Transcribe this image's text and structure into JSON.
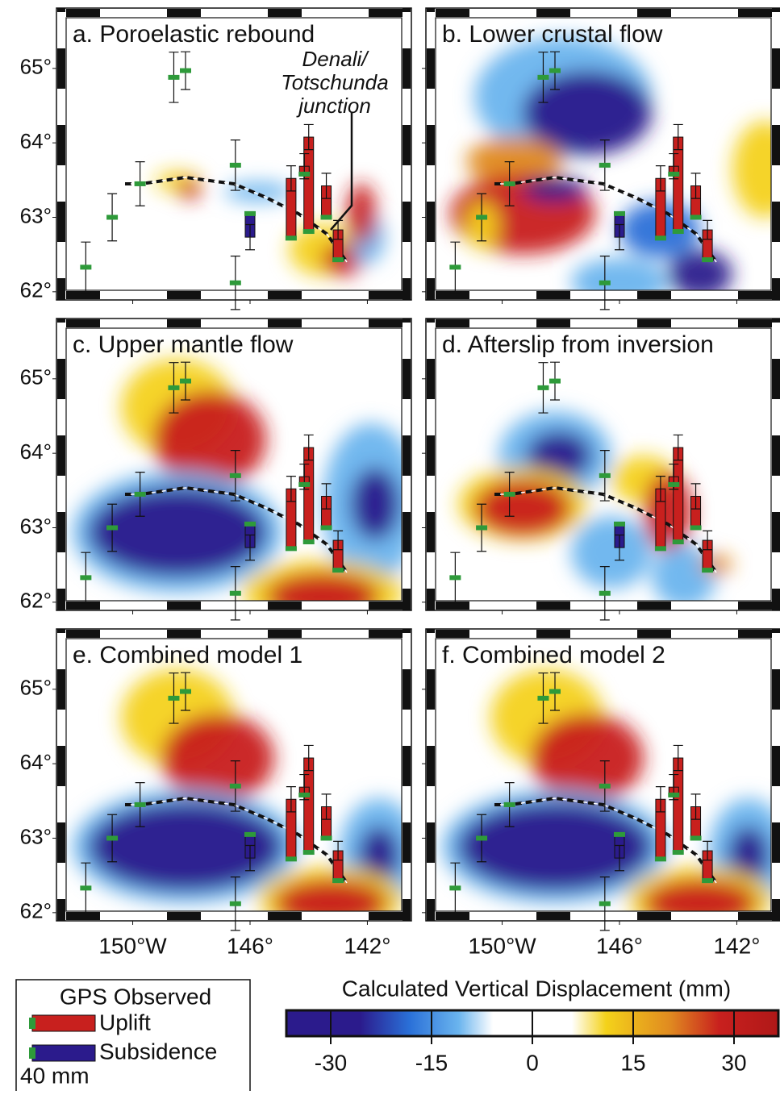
{
  "panels": [
    {
      "title": "a. Poroelastic rebound"
    },
    {
      "title": "b. Lower crustal flow"
    },
    {
      "title": "c. Upper mantle flow"
    },
    {
      "title": "d. Afterslip from inversion"
    },
    {
      "title": "e. Combined model 1"
    },
    {
      "title": "f. Combined model 2"
    }
  ],
  "map": {
    "xlim": [
      -152.6,
      -140.5
    ],
    "ylim": [
      61.89,
      65.81
    ],
    "lat_ticks": [
      {
        "value": 65,
        "label": "65°"
      },
      {
        "value": 64,
        "label": "64°"
      },
      {
        "value": 63,
        "label": "63°"
      },
      {
        "value": 62,
        "label": "62°"
      }
    ],
    "lon_ticks": [
      {
        "value": -150,
        "label": "150°W"
      },
      {
        "value": -146,
        "label": "146°"
      },
      {
        "value": -142,
        "label": "142°"
      }
    ]
  },
  "annotation": [
    "Denali/",
    "Totschunda",
    "junction"
  ],
  "stations": [
    {
      "lon": -151.6,
      "lat": 62.33,
      "displacement": 0,
      "error": 16
    },
    {
      "lon": -150.7,
      "lat": 63.0,
      "displacement": 0,
      "error": 15
    },
    {
      "lon": -149.75,
      "lat": 63.45,
      "displacement": 0,
      "error": 14
    },
    {
      "lon": -148.6,
      "lat": 64.88,
      "displacement": 0,
      "error": 16
    },
    {
      "lon": -148.2,
      "lat": 64.97,
      "displacement": 0,
      "error": 12
    },
    {
      "lon": -146.5,
      "lat": 62.12,
      "displacement": 0,
      "error": 17
    },
    {
      "lon": -146.5,
      "lat": 63.7,
      "displacement": 0,
      "error": 16
    },
    {
      "lon": -146.0,
      "lat": 63.05,
      "displacement": -15,
      "error": 8
    },
    {
      "lon": -144.6,
      "lat": 62.72,
      "displacement": 38,
      "error": 8
    },
    {
      "lon": -144.0,
      "lat": 62.81,
      "displacement": 60,
      "error": 8
    },
    {
      "lon": -144.15,
      "lat": 63.58,
      "displacement": 5,
      "error": 8
    },
    {
      "lon": -143.4,
      "lat": 63.0,
      "displacement": 20,
      "error": 8
    },
    {
      "lon": -143.0,
      "lat": 62.43,
      "displacement": 19,
      "error": 6
    }
  ],
  "legend": {
    "title": "GPS Observed",
    "uplift": "Uplift",
    "subsidence": "Subsidence",
    "scale": "40 mm"
  },
  "colorbar": {
    "label": "Calculated Vertical Displacement (mm)",
    "lim": [
      -36.6,
      36.6
    ],
    "ticks": [
      -30,
      -15,
      0,
      15,
      30
    ]
  }
}
